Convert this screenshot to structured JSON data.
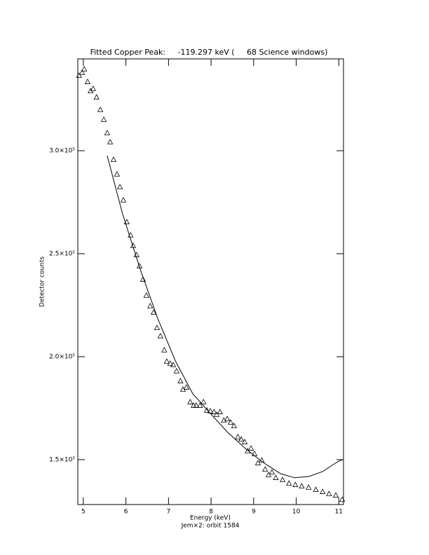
{
  "chart_data": {
    "type": "scatter",
    "title": "Fitted Copper Peak:     -119.297 keV (     68 Science windows)",
    "x_label": "Energy (keV)",
    "subtitle": "Jem×2: orbit 1584",
    "y_label": "Detector counts",
    "xlim": [
      4.87,
      11.11
    ],
    "ylim": [
      128200,
      344600
    ],
    "xticks": [
      5,
      6,
      7,
      8,
      9,
      10,
      11
    ],
    "yticks": [
      {
        "value": 150000,
        "label": "1.5×10⁵"
      },
      {
        "value": 200000,
        "label": "2.0×10⁵"
      },
      {
        "value": 250000,
        "label": "2.5×10⁵"
      },
      {
        "value": 300000,
        "label": "3.0×10⁵"
      }
    ],
    "series": [
      {
        "style": "triangle",
        "color": "#000000",
        "x": [
          4.9,
          4.97,
          5.02,
          5.1,
          5.17,
          5.23,
          5.31,
          5.4,
          5.48,
          5.56,
          5.63,
          5.71,
          5.79,
          5.86,
          5.94,
          6.02,
          6.11,
          6.17,
          6.25,
          6.32,
          6.4,
          6.48,
          6.57,
          6.65,
          6.73,
          6.81,
          6.9,
          6.96,
          7.04,
          7.11,
          7.19,
          7.28,
          7.34,
          7.42,
          7.51,
          7.59,
          7.65,
          7.74,
          7.82,
          7.9,
          7.98,
          8.07,
          8.13,
          8.21,
          8.3,
          8.38,
          8.46,
          8.54,
          8.63,
          8.71,
          8.79,
          8.86,
          8.94,
          9.02,
          9.1,
          9.19,
          9.27,
          9.35,
          9.43,
          9.52,
          9.68,
          9.83,
          9.98,
          10.13,
          10.29,
          10.46,
          10.62,
          10.77,
          10.93,
          11.08
        ],
        "values": [
          336400,
          337800,
          339500,
          333400,
          328900,
          330000,
          325900,
          319800,
          315000,
          308500,
          304100,
          295600,
          288500,
          282300,
          275900,
          265300,
          258900,
          253800,
          249300,
          243900,
          237400,
          229600,
          224500,
          221400,
          213900,
          209900,
          203100,
          197600,
          196600,
          195900,
          192900,
          188100,
          184000,
          185000,
          177900,
          176200,
          176200,
          176200,
          177900,
          173800,
          173500,
          173100,
          171800,
          173100,
          169000,
          169700,
          168000,
          166300,
          160900,
          159800,
          158500,
          154100,
          155400,
          152700,
          148300,
          149600,
          145200,
          142500,
          143800,
          141100,
          140100,
          138400,
          137700,
          137000,
          136400,
          135300,
          134300,
          133300,
          132600,
          130500
        ]
      },
      {
        "style": "line",
        "color": "#000000",
        "x": [
          5.56,
          5.92,
          6.34,
          6.75,
          7.16,
          7.57,
          7.98,
          8.39,
          8.8,
          9.22,
          9.63,
          9.96,
          10.29,
          10.62,
          10.95,
          11.08
        ],
        "values": [
          297600,
          269400,
          242200,
          218400,
          198000,
          182000,
          172500,
          163300,
          155500,
          148700,
          143200,
          141200,
          141800,
          144200,
          148700,
          150000
        ]
      }
    ]
  }
}
